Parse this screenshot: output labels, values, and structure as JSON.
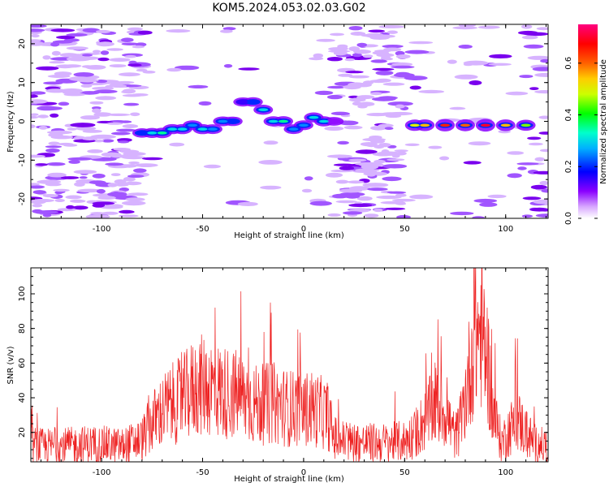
{
  "title": "KOM5.2024.053.02.03.G02",
  "chart_data": [
    {
      "type": "heatmap",
      "xlabel": "Height of straight line (km)",
      "ylabel": "Frequency (Hz)",
      "xlim": [
        -135,
        121
      ],
      "ylim": [
        -25,
        25
      ],
      "xticks": [
        -100,
        -50,
        0,
        50,
        100
      ],
      "yticks": [
        -20,
        -10,
        0,
        10,
        20
      ],
      "colorbar": {
        "label": "Normalized spectral amplitude",
        "range": [
          0,
          0.75
        ],
        "ticks": [
          0.0,
          0.2,
          0.4,
          0.6
        ],
        "colors": [
          "#ffffff",
          "#d8a8ff",
          "#8a00ff",
          "#0000ff",
          "#00ffff",
          "#00ff00",
          "#ffff00",
          "#ff8000",
          "#ff0000",
          "#ff0080"
        ]
      },
      "ridge": {
        "x": [
          -80,
          -75,
          -70,
          -65,
          -60,
          -55,
          -50,
          -45,
          -40,
          -35,
          -30,
          -25,
          -20,
          -15,
          -10,
          -5,
          0,
          5,
          10,
          15,
          55,
          60,
          70,
          80,
          90,
          100,
          110
        ],
        "y": [
          -3,
          -3,
          -3,
          -2,
          -2,
          -1,
          -2,
          -2,
          0,
          0,
          5,
          5,
          3,
          0,
          0,
          -2,
          -1,
          1,
          0,
          0,
          -1,
          -1,
          -1,
          -1,
          -1,
          -1,
          -1
        ],
        "amplitude": [
          0.2,
          0.3,
          0.35,
          0.3,
          0.3,
          0.25,
          0.3,
          0.25,
          0.25,
          0.2,
          0.15,
          0.2,
          0.3,
          0.3,
          0.35,
          0.25,
          0.25,
          0.3,
          0.3,
          0.1,
          0.5,
          0.55,
          0.65,
          0.6,
          0.7,
          0.55,
          0.45
        ]
      }
    },
    {
      "type": "line",
      "xlabel": "Height of straight line (km)",
      "ylabel": "SNR (v/v)",
      "xlim": [
        -135,
        121
      ],
      "ylim": [
        3,
        115
      ],
      "xticks": [
        -100,
        -50,
        0,
        50,
        100
      ],
      "yticks": [
        20,
        40,
        60,
        80,
        100
      ],
      "color": "#ee2222",
      "x": [
        -135,
        -130,
        -120,
        -110,
        -100,
        -90,
        -80,
        -76,
        -72,
        -68,
        -64,
        -60,
        -56,
        -52,
        -48,
        -44,
        -40,
        -36,
        -32,
        -28,
        -24,
        -20,
        -16,
        -12,
        -8,
        -4,
        0,
        4,
        8,
        12,
        15,
        20,
        30,
        40,
        50,
        55,
        60,
        65,
        70,
        75,
        78,
        82,
        85,
        88,
        91,
        94,
        98,
        102,
        106,
        110,
        115,
        121
      ],
      "y": [
        13,
        12,
        12,
        13,
        13,
        12,
        16,
        24,
        30,
        34,
        37,
        39,
        44,
        47,
        47,
        45,
        43,
        43,
        41,
        39,
        36,
        36,
        37,
        36,
        34,
        34,
        33,
        34,
        32,
        30,
        17,
        15,
        14,
        14,
        15,
        19,
        27,
        36,
        32,
        17,
        26,
        55,
        76,
        78,
        62,
        30,
        14,
        22,
        27,
        20,
        13,
        12
      ]
    }
  ]
}
